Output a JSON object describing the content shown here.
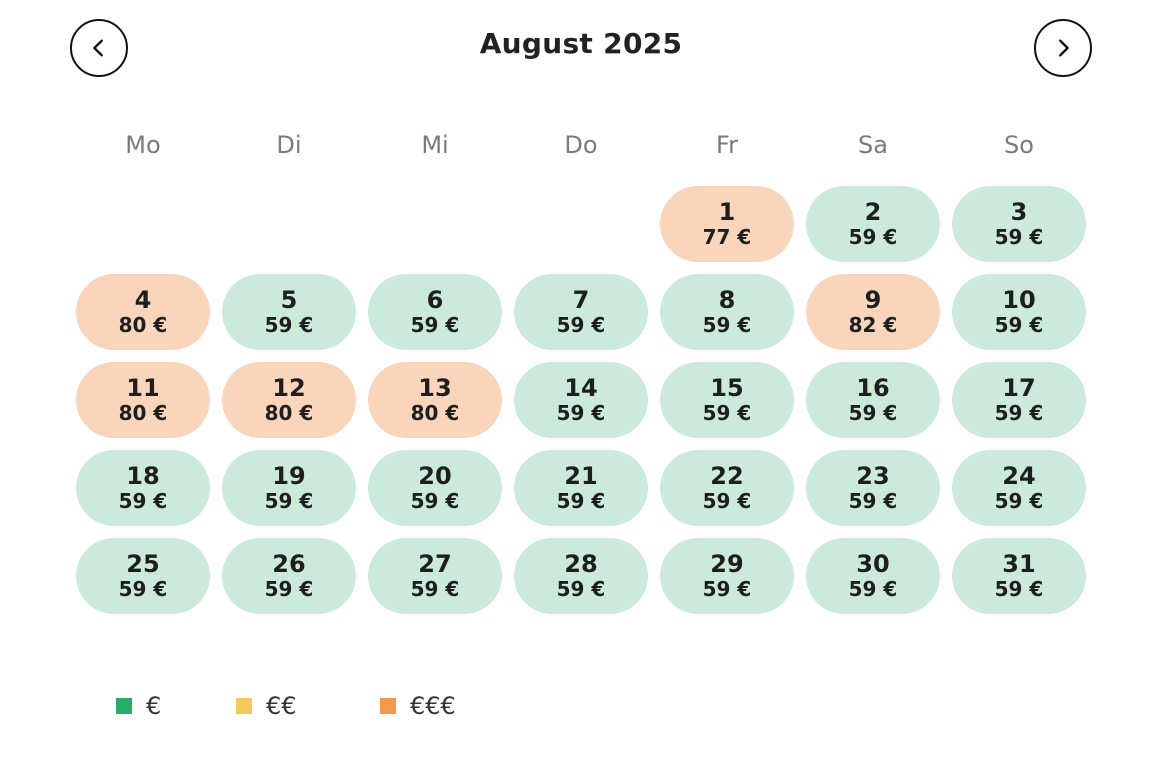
{
  "calendar": {
    "month_title": "August 2025",
    "weekdays": [
      "Mo",
      "Di",
      "Mi",
      "Do",
      "Fr",
      "Sa",
      "So"
    ],
    "start_weekday_index": 4,
    "days": [
      {
        "day": "1",
        "price": "77 €",
        "tier": "high"
      },
      {
        "day": "2",
        "price": "59 €",
        "tier": "low"
      },
      {
        "day": "3",
        "price": "59 €",
        "tier": "low"
      },
      {
        "day": "4",
        "price": "80 €",
        "tier": "high"
      },
      {
        "day": "5",
        "price": "59 €",
        "tier": "low"
      },
      {
        "day": "6",
        "price": "59 €",
        "tier": "low"
      },
      {
        "day": "7",
        "price": "59 €",
        "tier": "low"
      },
      {
        "day": "8",
        "price": "59 €",
        "tier": "low"
      },
      {
        "day": "9",
        "price": "82 €",
        "tier": "high"
      },
      {
        "day": "10",
        "price": "59 €",
        "tier": "low"
      },
      {
        "day": "11",
        "price": "80 €",
        "tier": "high"
      },
      {
        "day": "12",
        "price": "80 €",
        "tier": "high"
      },
      {
        "day": "13",
        "price": "80 €",
        "tier": "high"
      },
      {
        "day": "14",
        "price": "59 €",
        "tier": "low"
      },
      {
        "day": "15",
        "price": "59 €",
        "tier": "low"
      },
      {
        "day": "16",
        "price": "59 €",
        "tier": "low"
      },
      {
        "day": "17",
        "price": "59 €",
        "tier": "low"
      },
      {
        "day": "18",
        "price": "59 €",
        "tier": "low"
      },
      {
        "day": "19",
        "price": "59 €",
        "tier": "low"
      },
      {
        "day": "20",
        "price": "59 €",
        "tier": "low"
      },
      {
        "day": "21",
        "price": "59 €",
        "tier": "low"
      },
      {
        "day": "22",
        "price": "59 €",
        "tier": "low"
      },
      {
        "day": "23",
        "price": "59 €",
        "tier": "low"
      },
      {
        "day": "24",
        "price": "59 €",
        "tier": "low"
      },
      {
        "day": "25",
        "price": "59 €",
        "tier": "low"
      },
      {
        "day": "26",
        "price": "59 €",
        "tier": "low"
      },
      {
        "day": "27",
        "price": "59 €",
        "tier": "low"
      },
      {
        "day": "28",
        "price": "59 €",
        "tier": "low"
      },
      {
        "day": "29",
        "price": "59 €",
        "tier": "low"
      },
      {
        "day": "30",
        "price": "59 €",
        "tier": "low"
      },
      {
        "day": "31",
        "price": "59 €",
        "tier": "low"
      }
    ]
  },
  "nav": {
    "prev_icon": "chevron-left-icon",
    "next_icon": "chevron-right-icon"
  },
  "legend": [
    {
      "label": "€",
      "color": "#2bab6a"
    },
    {
      "label": "€€",
      "color": "#f5c85a"
    },
    {
      "label": "€€€",
      "color": "#f4984e"
    }
  ],
  "colors": {
    "low_bg": "#cbeadb",
    "high_bg": "#f8d5bb"
  }
}
